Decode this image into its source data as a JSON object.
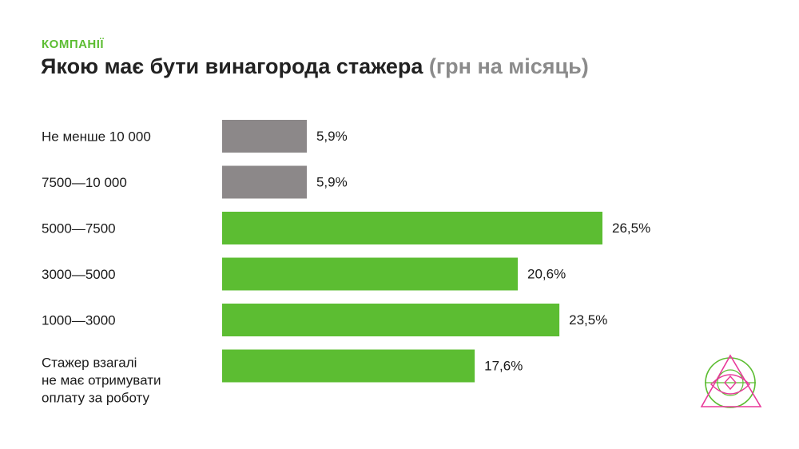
{
  "header": {
    "kicker": "КОМПАНІЇ",
    "title": "Якою має бути винагорода стажера",
    "subtitle": "(грн на місяць)"
  },
  "colors": {
    "accent": "#5cbd32",
    "muted": "#8c8889",
    "logo_pink": "#e8399a"
  },
  "chart_data": {
    "type": "bar",
    "orientation": "horizontal",
    "categories": [
      [
        "Не менше 10 000"
      ],
      [
        "7500—10 000"
      ],
      [
        "5000—7500"
      ],
      [
        "3000—5000"
      ],
      [
        "1000—3000"
      ],
      [
        "Стажер взагалі",
        "не має отримувати",
        "оплату за роботу"
      ]
    ],
    "values": [
      5.9,
      5.9,
      26.5,
      20.6,
      23.5,
      17.6
    ],
    "value_labels": [
      "5,9%",
      "5,9%",
      "26,5%",
      "20,6%",
      "23,5%",
      "17,6%"
    ],
    "bar_colors": [
      "#8c8889",
      "#8c8889",
      "#5cbd32",
      "#5cbd32",
      "#5cbd32",
      "#5cbd32"
    ],
    "xlim": [
      0,
      26.5
    ],
    "grid": false
  },
  "logo": {
    "icon": "eye-triangle-logo-icon"
  }
}
